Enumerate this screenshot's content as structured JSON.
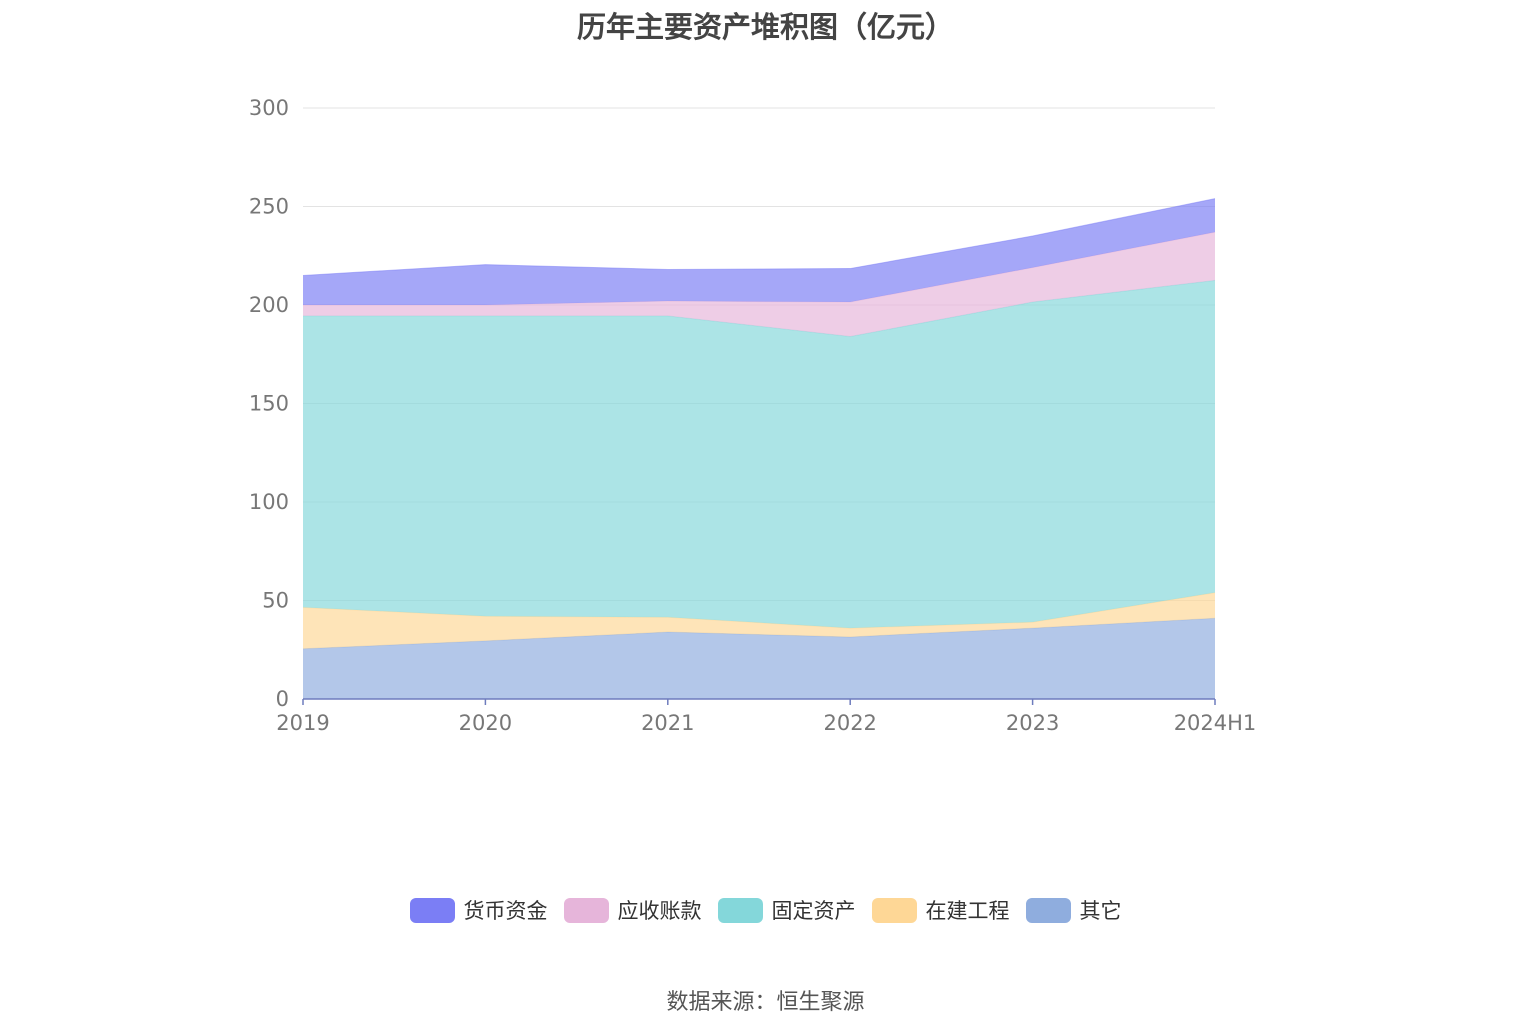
{
  "chart_data": {
    "type": "area",
    "stacked": true,
    "title": "历年主要资产堆积图（亿元）",
    "categories": [
      "2019",
      "2020",
      "2021",
      "2022",
      "2023",
      "2024H1"
    ],
    "ylim": [
      0,
      300
    ],
    "yticks": [
      0,
      50,
      100,
      150,
      200,
      250,
      300
    ],
    "grid": true,
    "legend_position": "bottom",
    "series": [
      {
        "name": "其它",
        "color": "#8fadde",
        "values": [
          25.5,
          29.5,
          34,
          31.5,
          36,
          41
        ]
      },
      {
        "name": "在建工程",
        "color": "#fed796",
        "values": [
          21,
          12.5,
          7.5,
          4.5,
          3,
          13
        ]
      },
      {
        "name": "固定资产",
        "color": "#84d7da",
        "values": [
          148,
          152.5,
          153,
          148,
          162.5,
          158.5
        ]
      },
      {
        "name": "应收账款",
        "color": "#e6b5da",
        "values": [
          5.5,
          5.5,
          7.5,
          17.5,
          17.5,
          24.5
        ]
      },
      {
        "name": "货币资金",
        "color": "#7b7ef5",
        "values": [
          15,
          20.5,
          16,
          17,
          16,
          17
        ]
      }
    ]
  },
  "legend_order": [
    "货币资金",
    "应收账款",
    "固定资产",
    "在建工程",
    "其它"
  ],
  "source": "数据来源：恒生聚源"
}
